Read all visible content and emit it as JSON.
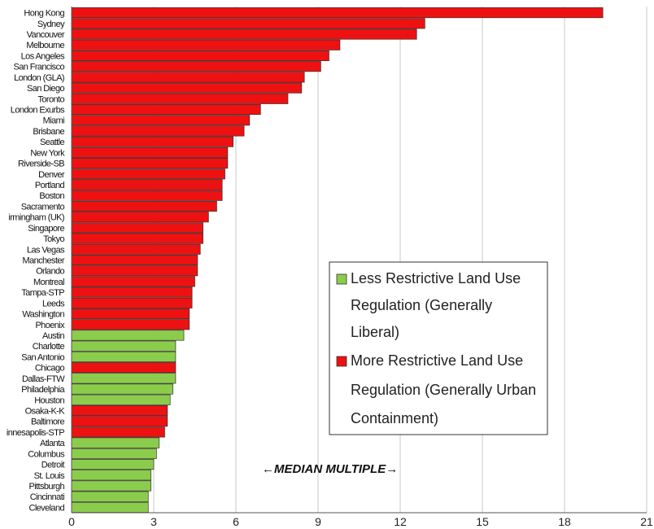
{
  "chart_data": {
    "type": "bar",
    "orientation": "horizontal",
    "categories": [
      "Hong Kong",
      "Sydney",
      "Vancouver",
      "Melbourne",
      "Los Angeles",
      "San Francisco",
      "London (GLA)",
      "San Diego",
      "Toronto",
      "London Exurbs",
      "Miami",
      "Brisbane",
      "Seattle",
      "New York",
      "Riverside-SB",
      "Denver",
      "Portland",
      "Boston",
      "Sacramento",
      "Birmingham (UK)",
      "Singapore",
      "Tokyo",
      "Las Vegas",
      "Manchester",
      "Orlando",
      "Montreal",
      "Tampa-STP",
      "Leeds",
      "Washington",
      "Phoenix",
      "Austin",
      "Charlotte",
      "San Antonio",
      "Chicago",
      "Dallas-FTW",
      "Philadelphia",
      "Houston",
      "Osaka-K-K",
      "Baltimore",
      "Minneapolis-STP",
      "Atlanta",
      "Columbus",
      "Detroit",
      "St. Louis",
      "Pittsburgh",
      "Cincinnati",
      "Cleveland"
    ],
    "category_labels_shown": [
      "Hong Kong",
      "Sydney",
      "Vancouver",
      "Melbourne",
      "Los Angeles",
      "San Francisco",
      "London (GLA)",
      "San Diego",
      "Toronto",
      "London Exurbs",
      "Miami",
      "Brisbane",
      "Seattle",
      "New York",
      "Riverside-SB",
      "Denver",
      "Portland",
      "Boston",
      "Sacramento",
      "irmingham (UK)",
      "Singapore",
      "Tokyo",
      "Las Vegas",
      "Manchester",
      "Orlando",
      "Montreal",
      "Tampa-STP",
      "Leeds",
      "Washington",
      "Phoenix",
      "Austin",
      "Charlotte",
      "San Antonio",
      "Chicago",
      "Dallas-FTW",
      "Philadelphia",
      "Houston",
      "Osaka-K-K",
      "Baltimore",
      "innesapolis-STP",
      "Atlanta",
      "Columbus",
      "Detroit",
      "St. Louis",
      "Pittsburgh",
      "Cincinnati",
      "Cleveland"
    ],
    "values": [
      19.4,
      12.9,
      12.6,
      9.8,
      9.4,
      9.1,
      8.5,
      8.4,
      7.9,
      6.9,
      6.5,
      6.3,
      5.9,
      5.7,
      5.7,
      5.6,
      5.5,
      5.5,
      5.3,
      5.0,
      4.8,
      4.8,
      4.7,
      4.6,
      4.6,
      4.5,
      4.4,
      4.4,
      4.3,
      4.3,
      4.1,
      3.8,
      3.8,
      3.8,
      3.8,
      3.7,
      3.6,
      3.5,
      3.5,
      3.4,
      3.2,
      3.1,
      3.0,
      2.9,
      2.9,
      2.8,
      2.8
    ],
    "regulation": [
      "more",
      "more",
      "more",
      "more",
      "more",
      "more",
      "more",
      "more",
      "more",
      "more",
      "more",
      "more",
      "more",
      "more",
      "more",
      "more",
      "more",
      "more",
      "more",
      "more",
      "more",
      "more",
      "more",
      "more",
      "more",
      "more",
      "more",
      "more",
      "more",
      "more",
      "less",
      "less",
      "less",
      "more",
      "less",
      "less",
      "less",
      "more",
      "more",
      "more",
      "less",
      "less",
      "less",
      "less",
      "less",
      "less",
      "less"
    ],
    "colors": {
      "more": "#ee1111",
      "less": "#8ccc4c",
      "edge": "#333333",
      "grid": "#c8c8c8"
    },
    "xlim": [
      0,
      21
    ],
    "xticks": [
      "0",
      "3",
      "6",
      "9",
      "12",
      "15",
      "18",
      "21"
    ],
    "grid": "vertical",
    "legend": {
      "placement": "center-right",
      "items": [
        {
          "key": "less",
          "lines": [
            "Less Restrictive Land Use",
            "Regulation (Generally",
            "Liberal)"
          ]
        },
        {
          "key": "more",
          "lines": [
            "More Restrictive Land Use",
            "Regulation (Generally Urban",
            "Containment)"
          ]
        }
      ]
    },
    "annotation": "←MEDIAN MULTIPLE→",
    "title": "",
    "xlabel": "",
    "ylabel": ""
  }
}
